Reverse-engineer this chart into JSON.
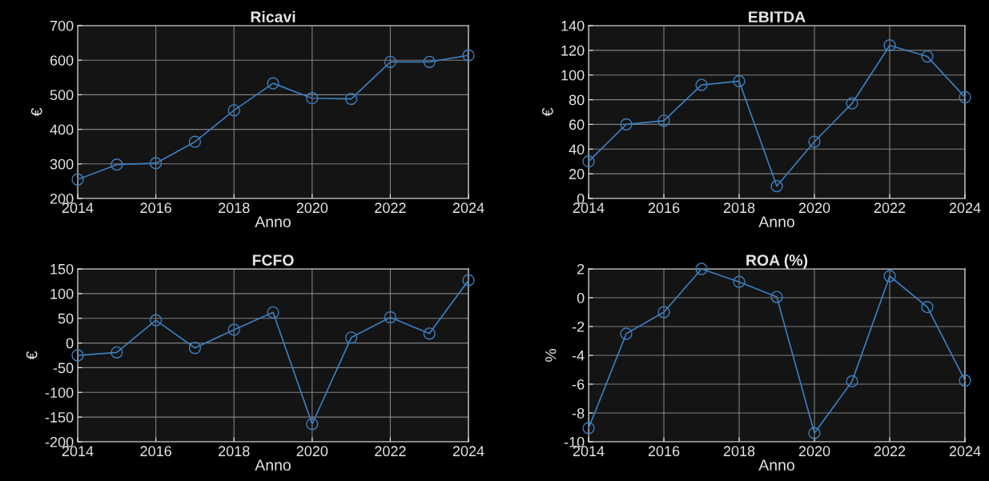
{
  "chart_data": [
    {
      "type": "line",
      "title": "Ricavi",
      "xlabel": "Anno",
      "ylabel": "€",
      "x": [
        2014,
        2015,
        2016,
        2017,
        2018,
        2019,
        2020,
        2021,
        2022,
        2023,
        2024
      ],
      "series": [
        {
          "color": "#3a7fc0",
          "values": [
            255,
            298,
            302,
            364,
            455,
            533,
            490,
            488,
            595,
            595,
            614
          ]
        }
      ],
      "xlim": [
        2014,
        2024
      ],
      "xticks": [
        2014,
        2016,
        2018,
        2020,
        2022,
        2024
      ],
      "ylim": [
        200,
        700
      ],
      "yticks": [
        200,
        300,
        400,
        500,
        600,
        700
      ],
      "grid": true,
      "marker": "circle",
      "line_style": "solid"
    },
    {
      "type": "line",
      "title": "EBITDA",
      "xlabel": "Anno",
      "ylabel": "€",
      "x": [
        2014,
        2015,
        2016,
        2017,
        2018,
        2019,
        2020,
        2021,
        2022,
        2023,
        2024
      ],
      "series": [
        {
          "color": "#3a7fc0",
          "values": [
            30,
            60,
            63,
            92,
            95,
            10,
            46,
            77,
            124,
            115,
            82
          ]
        }
      ],
      "xlim": [
        2014,
        2024
      ],
      "xticks": [
        2014,
        2016,
        2018,
        2020,
        2022,
        2024
      ],
      "ylim": [
        0,
        140
      ],
      "yticks": [
        0,
        20,
        40,
        60,
        80,
        100,
        120,
        140
      ],
      "grid": true,
      "marker": "circle",
      "line_style": "solid"
    },
    {
      "type": "line",
      "title": "FCFO",
      "xlabel": "Anno",
      "ylabel": "€",
      "x": [
        2014,
        2015,
        2016,
        2017,
        2018,
        2019,
        2020,
        2021,
        2022,
        2023,
        2024
      ],
      "series": [
        {
          "color": "#3a7fc0",
          "values": [
            -25,
            -19,
            46,
            -10,
            27,
            62,
            -164,
            11,
            52,
            19,
            127
          ]
        }
      ],
      "xlim": [
        2014,
        2024
      ],
      "xticks": [
        2014,
        2016,
        2018,
        2020,
        2022,
        2024
      ],
      "ylim": [
        -200,
        150
      ],
      "yticks": [
        -200,
        -150,
        -100,
        -50,
        0,
        50,
        100,
        150
      ],
      "grid": true,
      "marker": "circle",
      "line_style": "solid"
    },
    {
      "type": "line",
      "title": "ROA (%)",
      "xlabel": "Anno",
      "ylabel": "%",
      "x": [
        2014,
        2015,
        2016,
        2017,
        2018,
        2019,
        2020,
        2021,
        2022,
        2023,
        2024
      ],
      "series": [
        {
          "color": "#3a7fc0",
          "values": [
            -9.05,
            -2.5,
            -1,
            2,
            1.1,
            0.05,
            -9.4,
            -5.8,
            1.5,
            -0.65,
            -5.75
          ]
        }
      ],
      "xlim": [
        2014,
        2024
      ],
      "xticks": [
        2014,
        2016,
        2018,
        2020,
        2022,
        2024
      ],
      "ylim": [
        -10,
        2
      ],
      "yticks": [
        -10,
        -8,
        -6,
        -4,
        -2,
        0,
        2
      ],
      "grid": true,
      "marker": "circle",
      "line_style": "solid"
    }
  ]
}
